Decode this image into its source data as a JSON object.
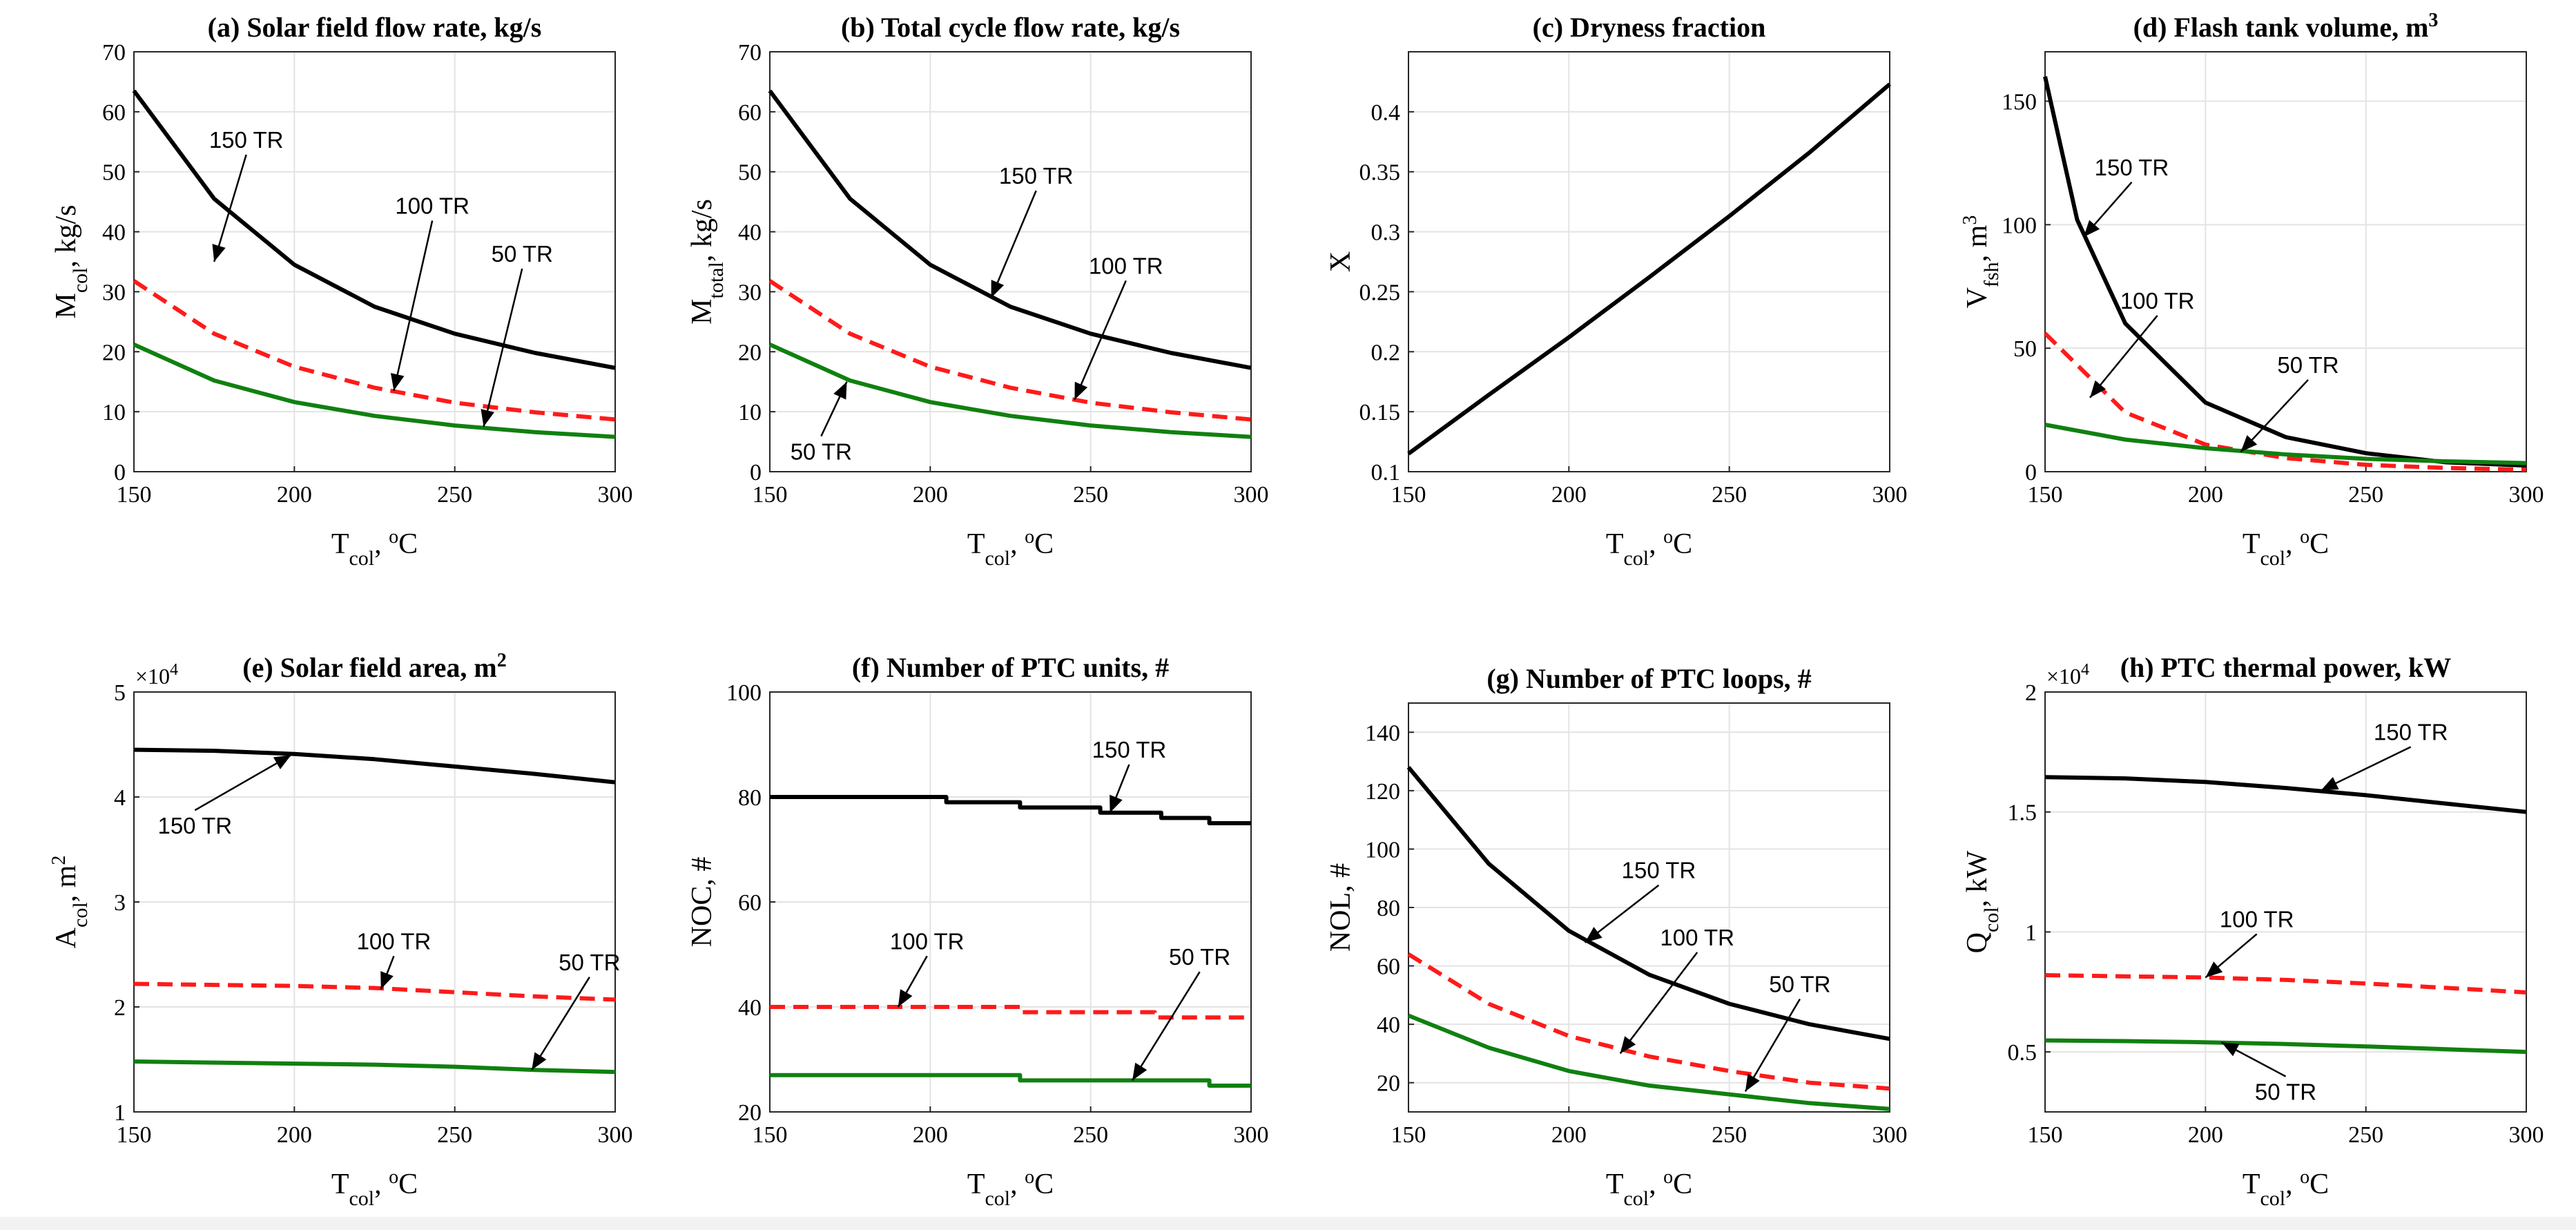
{
  "colors": {
    "150 TR": "#000000",
    "100 TR": "#ff1a1a",
    "50 TR": "#108010"
  },
  "chart_data": [
    {
      "id": "a",
      "type": "line",
      "title": "(a) Solar field flow rate, kg/s",
      "xlabel": "T_col, oC",
      "ylabel": "M_col, kg/s",
      "xlim": [
        150,
        300
      ],
      "ylim": [
        0,
        70
      ],
      "xticks": [
        150,
        200,
        250,
        300
      ],
      "yticks": [
        0,
        10,
        20,
        30,
        40,
        50,
        60,
        70
      ],
      "grid": true,
      "series": [
        {
          "name": "150 TR",
          "x": [
            150,
            175,
            200,
            225,
            250,
            275,
            300
          ],
          "values": [
            63.5,
            45.5,
            34.5,
            27.5,
            23,
            19.8,
            17.3
          ]
        },
        {
          "name": "100 TR",
          "x": [
            150,
            175,
            200,
            225,
            250,
            275,
            300
          ],
          "values": [
            31.8,
            23,
            17.5,
            14,
            11.5,
            9.9,
            8.7
          ]
        },
        {
          "name": "50 TR",
          "x": [
            150,
            175,
            200,
            225,
            250,
            275,
            300
          ],
          "values": [
            21.2,
            15.2,
            11.6,
            9.3,
            7.7,
            6.6,
            5.8
          ]
        }
      ],
      "annotations": [
        {
          "text": "150 TR",
          "label": [
            185,
            54
          ],
          "tip": [
            175,
            35
          ]
        },
        {
          "text": "100 TR",
          "label": [
            243,
            43
          ],
          "tip": [
            231,
            13.5
          ]
        },
        {
          "text": "50 TR",
          "label": [
            271,
            35
          ],
          "tip": [
            259,
            7.5
          ]
        }
      ]
    },
    {
      "id": "b",
      "type": "line",
      "title": "(b) Total cycle flow rate, kg/s",
      "xlabel": "T_col, oC",
      "ylabel": "M_total, kg/s",
      "xlim": [
        150,
        300
      ],
      "ylim": [
        0,
        70
      ],
      "xticks": [
        150,
        200,
        250,
        300
      ],
      "yticks": [
        0,
        10,
        20,
        30,
        40,
        50,
        60,
        70
      ],
      "grid": true,
      "series": [
        {
          "name": "150 TR",
          "x": [
            150,
            175,
            200,
            225,
            250,
            275,
            300
          ],
          "values": [
            63.5,
            45.5,
            34.5,
            27.5,
            23,
            19.8,
            17.3
          ]
        },
        {
          "name": "100 TR",
          "x": [
            150,
            175,
            200,
            225,
            250,
            275,
            300
          ],
          "values": [
            31.8,
            23,
            17.5,
            14,
            11.5,
            9.9,
            8.7
          ]
        },
        {
          "name": "50 TR",
          "x": [
            150,
            175,
            200,
            225,
            250,
            275,
            300
          ],
          "values": [
            21.2,
            15.2,
            11.6,
            9.3,
            7.7,
            6.6,
            5.8
          ]
        }
      ],
      "annotations": [
        {
          "text": "150 TR",
          "label": [
            233,
            48
          ],
          "tip": [
            219,
            29
          ]
        },
        {
          "text": "100 TR",
          "label": [
            261,
            33
          ],
          "tip": [
            245,
            12
          ]
        },
        {
          "text": "50 TR",
          "label": [
            166,
            2
          ],
          "tip": [
            174,
            15
          ]
        }
      ]
    },
    {
      "id": "c",
      "type": "line",
      "title": "(c) Dryness fraction",
      "xlabel": "T_col, oC",
      "ylabel": "X",
      "xlim": [
        150,
        300
      ],
      "ylim": [
        0.1,
        0.45
      ],
      "xticks": [
        150,
        200,
        250,
        300
      ],
      "yticks": [
        0.1,
        0.15,
        0.2,
        0.25,
        0.3,
        0.35,
        0.4
      ],
      "grid": true,
      "series": [
        {
          "name": "",
          "x": [
            150,
            175,
            200,
            225,
            250,
            275,
            300
          ],
          "values": [
            0.115,
            0.164,
            0.212,
            0.262,
            0.313,
            0.366,
            0.423
          ]
        }
      ],
      "annotations": []
    },
    {
      "id": "d",
      "type": "line",
      "title": "(d) Flash tank volume, m3",
      "xlabel": "T_col, oC",
      "ylabel": "V_fsh, m3",
      "xlim": [
        150,
        300
      ],
      "ylim": [
        0,
        170
      ],
      "xticks": [
        150,
        200,
        250,
        300
      ],
      "yticks": [
        0,
        50,
        100,
        150
      ],
      "grid": true,
      "series": [
        {
          "name": "150 TR",
          "x": [
            150,
            160,
            175,
            200,
            225,
            250,
            275,
            300
          ],
          "values": [
            160,
            102,
            60,
            28,
            14,
            7.5,
            3.8,
            2.5
          ]
        },
        {
          "name": "100 TR",
          "x": [
            150,
            175,
            200,
            225,
            250,
            275,
            300
          ],
          "values": [
            56,
            24,
            11,
            5.5,
            2.8,
            1.5,
            0.8
          ]
        },
        {
          "name": "50 TR",
          "x": [
            150,
            175,
            200,
            225,
            250,
            275,
            300
          ],
          "values": [
            19,
            13,
            9.5,
            7,
            5.2,
            4.2,
            3.5
          ]
        }
      ],
      "annotations": [
        {
          "text": "150 TR",
          "label": [
            177,
            120
          ],
          "tip": [
            162,
            95
          ]
        },
        {
          "text": "100 TR",
          "label": [
            185,
            66
          ],
          "tip": [
            164,
            30
          ]
        },
        {
          "text": "50 TR",
          "label": [
            232,
            40
          ],
          "tip": [
            211,
            8
          ]
        }
      ]
    },
    {
      "id": "e",
      "type": "line",
      "title": "(e) Solar field area, m2",
      "xlabel": "T_col, oC",
      "ylabel": "A_col, m2",
      "multiplier": "×10^4",
      "xlim": [
        150,
        300
      ],
      "ylim": [
        1,
        5
      ],
      "xticks": [
        150,
        200,
        250,
        300
      ],
      "yticks": [
        1,
        2,
        3,
        4,
        5
      ],
      "grid": true,
      "series": [
        {
          "name": "150 TR",
          "x": [
            150,
            175,
            200,
            225,
            250,
            275,
            300
          ],
          "values": [
            4.45,
            4.44,
            4.41,
            4.36,
            4.29,
            4.22,
            4.14
          ]
        },
        {
          "name": "100 TR",
          "x": [
            150,
            175,
            200,
            225,
            250,
            275,
            300
          ],
          "values": [
            2.22,
            2.21,
            2.2,
            2.18,
            2.14,
            2.1,
            2.07
          ]
        },
        {
          "name": "50 TR",
          "x": [
            150,
            175,
            200,
            225,
            250,
            275,
            300
          ],
          "values": [
            1.48,
            1.47,
            1.46,
            1.45,
            1.43,
            1.4,
            1.38
          ]
        }
      ],
      "annotations": [
        {
          "text": "150 TR",
          "label": [
            169,
            3.65
          ],
          "tip": [
            199,
            4.4
          ]
        },
        {
          "text": "100 TR",
          "label": [
            231,
            2.55
          ],
          "tip": [
            227,
            2.17
          ]
        },
        {
          "text": "50 TR",
          "label": [
            292,
            2.35
          ],
          "tip": [
            274,
            1.4
          ]
        }
      ]
    },
    {
      "id": "f",
      "type": "line",
      "title": "(f) Number of PTC units, #",
      "xlabel": "T_col, oC",
      "ylabel": "NOC, #",
      "xlim": [
        150,
        300
      ],
      "ylim": [
        20,
        100
      ],
      "xticks": [
        150,
        200,
        250,
        300
      ],
      "yticks": [
        20,
        40,
        60,
        80,
        100
      ],
      "grid": true,
      "series": [
        {
          "name": "150 TR",
          "step": true,
          "x": [
            150,
            205,
            205,
            228,
            228,
            253,
            253,
            272,
            272,
            287,
            287,
            300
          ],
          "values": [
            80,
            80,
            79,
            79,
            78,
            78,
            77,
            77,
            76,
            76,
            75,
            75
          ]
        },
        {
          "name": "100 TR",
          "step": true,
          "x": [
            150,
            228,
            228,
            270,
            270,
            300
          ],
          "values": [
            40,
            40,
            39,
            39,
            38,
            38
          ]
        },
        {
          "name": "50 TR",
          "step": true,
          "x": [
            150,
            228,
            228,
            287,
            287,
            300
          ],
          "values": [
            27,
            27,
            26,
            26,
            25,
            25
          ]
        }
      ],
      "annotations": [
        {
          "text": "150 TR",
          "label": [
            262,
            87.5
          ],
          "tip": [
            256,
            77
          ]
        },
        {
          "text": "100 TR",
          "label": [
            199,
            51
          ],
          "tip": [
            190,
            40
          ]
        },
        {
          "text": "50 TR",
          "label": [
            284,
            48
          ],
          "tip": [
            263,
            26
          ]
        }
      ]
    },
    {
      "id": "g",
      "type": "line",
      "title": "(g) Number of PTC loops, #",
      "xlabel": "T_col, oC",
      "ylabel": "NOL, #",
      "xlim": [
        150,
        300
      ],
      "ylim": [
        10,
        150
      ],
      "xticks": [
        150,
        200,
        250,
        300
      ],
      "yticks": [
        20,
        40,
        60,
        80,
        100,
        120,
        140
      ],
      "grid": true,
      "series": [
        {
          "name": "150 TR",
          "x": [
            150,
            175,
            200,
            225,
            250,
            275,
            300
          ],
          "values": [
            128,
            95,
            72,
            57,
            47,
            40,
            35
          ]
        },
        {
          "name": "100 TR",
          "x": [
            150,
            175,
            200,
            225,
            250,
            275,
            300
          ],
          "values": [
            64,
            47,
            36,
            29,
            24,
            20,
            18
          ]
        },
        {
          "name": "50 TR",
          "x": [
            150,
            175,
            200,
            225,
            250,
            275,
            300
          ],
          "values": [
            43,
            32,
            24,
            19,
            16,
            13,
            11
          ]
        }
      ],
      "annotations": [
        {
          "text": "150 TR",
          "label": [
            228,
            90
          ],
          "tip": [
            205,
            68
          ]
        },
        {
          "text": "100 TR",
          "label": [
            240,
            67
          ],
          "tip": [
            216,
            30
          ]
        },
        {
          "text": "50 TR",
          "label": [
            272,
            51
          ],
          "tip": [
            255,
            17
          ]
        }
      ]
    },
    {
      "id": "h",
      "type": "line",
      "title": "(h) PTC thermal power, kW",
      "xlabel": "T_col, oC",
      "ylabel": "Q_col, kW",
      "multiplier": "×10^4",
      "xlim": [
        150,
        300
      ],
      "ylim": [
        0.25,
        2
      ],
      "xticks": [
        150,
        200,
        250,
        300
      ],
      "yticks": [
        0.5,
        1,
        1.5,
        2
      ],
      "grid": true,
      "series": [
        {
          "name": "150 TR",
          "x": [
            150,
            175,
            200,
            225,
            250,
            275,
            300
          ],
          "values": [
            1.645,
            1.64,
            1.625,
            1.6,
            1.57,
            1.535,
            1.5
          ]
        },
        {
          "name": "100 TR",
          "x": [
            150,
            175,
            200,
            225,
            250,
            275,
            300
          ],
          "values": [
            0.82,
            0.815,
            0.81,
            0.8,
            0.785,
            0.767,
            0.748
          ]
        },
        {
          "name": "50 TR",
          "x": [
            150,
            175,
            200,
            225,
            250,
            275,
            300
          ],
          "values": [
            0.548,
            0.545,
            0.54,
            0.533,
            0.523,
            0.511,
            0.5
          ]
        }
      ],
      "annotations": [
        {
          "text": "150 TR",
          "label": [
            264,
            1.8
          ],
          "tip": [
            236,
            1.59
          ]
        },
        {
          "text": "100 TR",
          "label": [
            216,
            1.02
          ],
          "tip": [
            200,
            0.81
          ]
        },
        {
          "text": "50 TR",
          "label": [
            225,
            0.3
          ],
          "tip": [
            205,
            0.54
          ]
        }
      ]
    }
  ]
}
